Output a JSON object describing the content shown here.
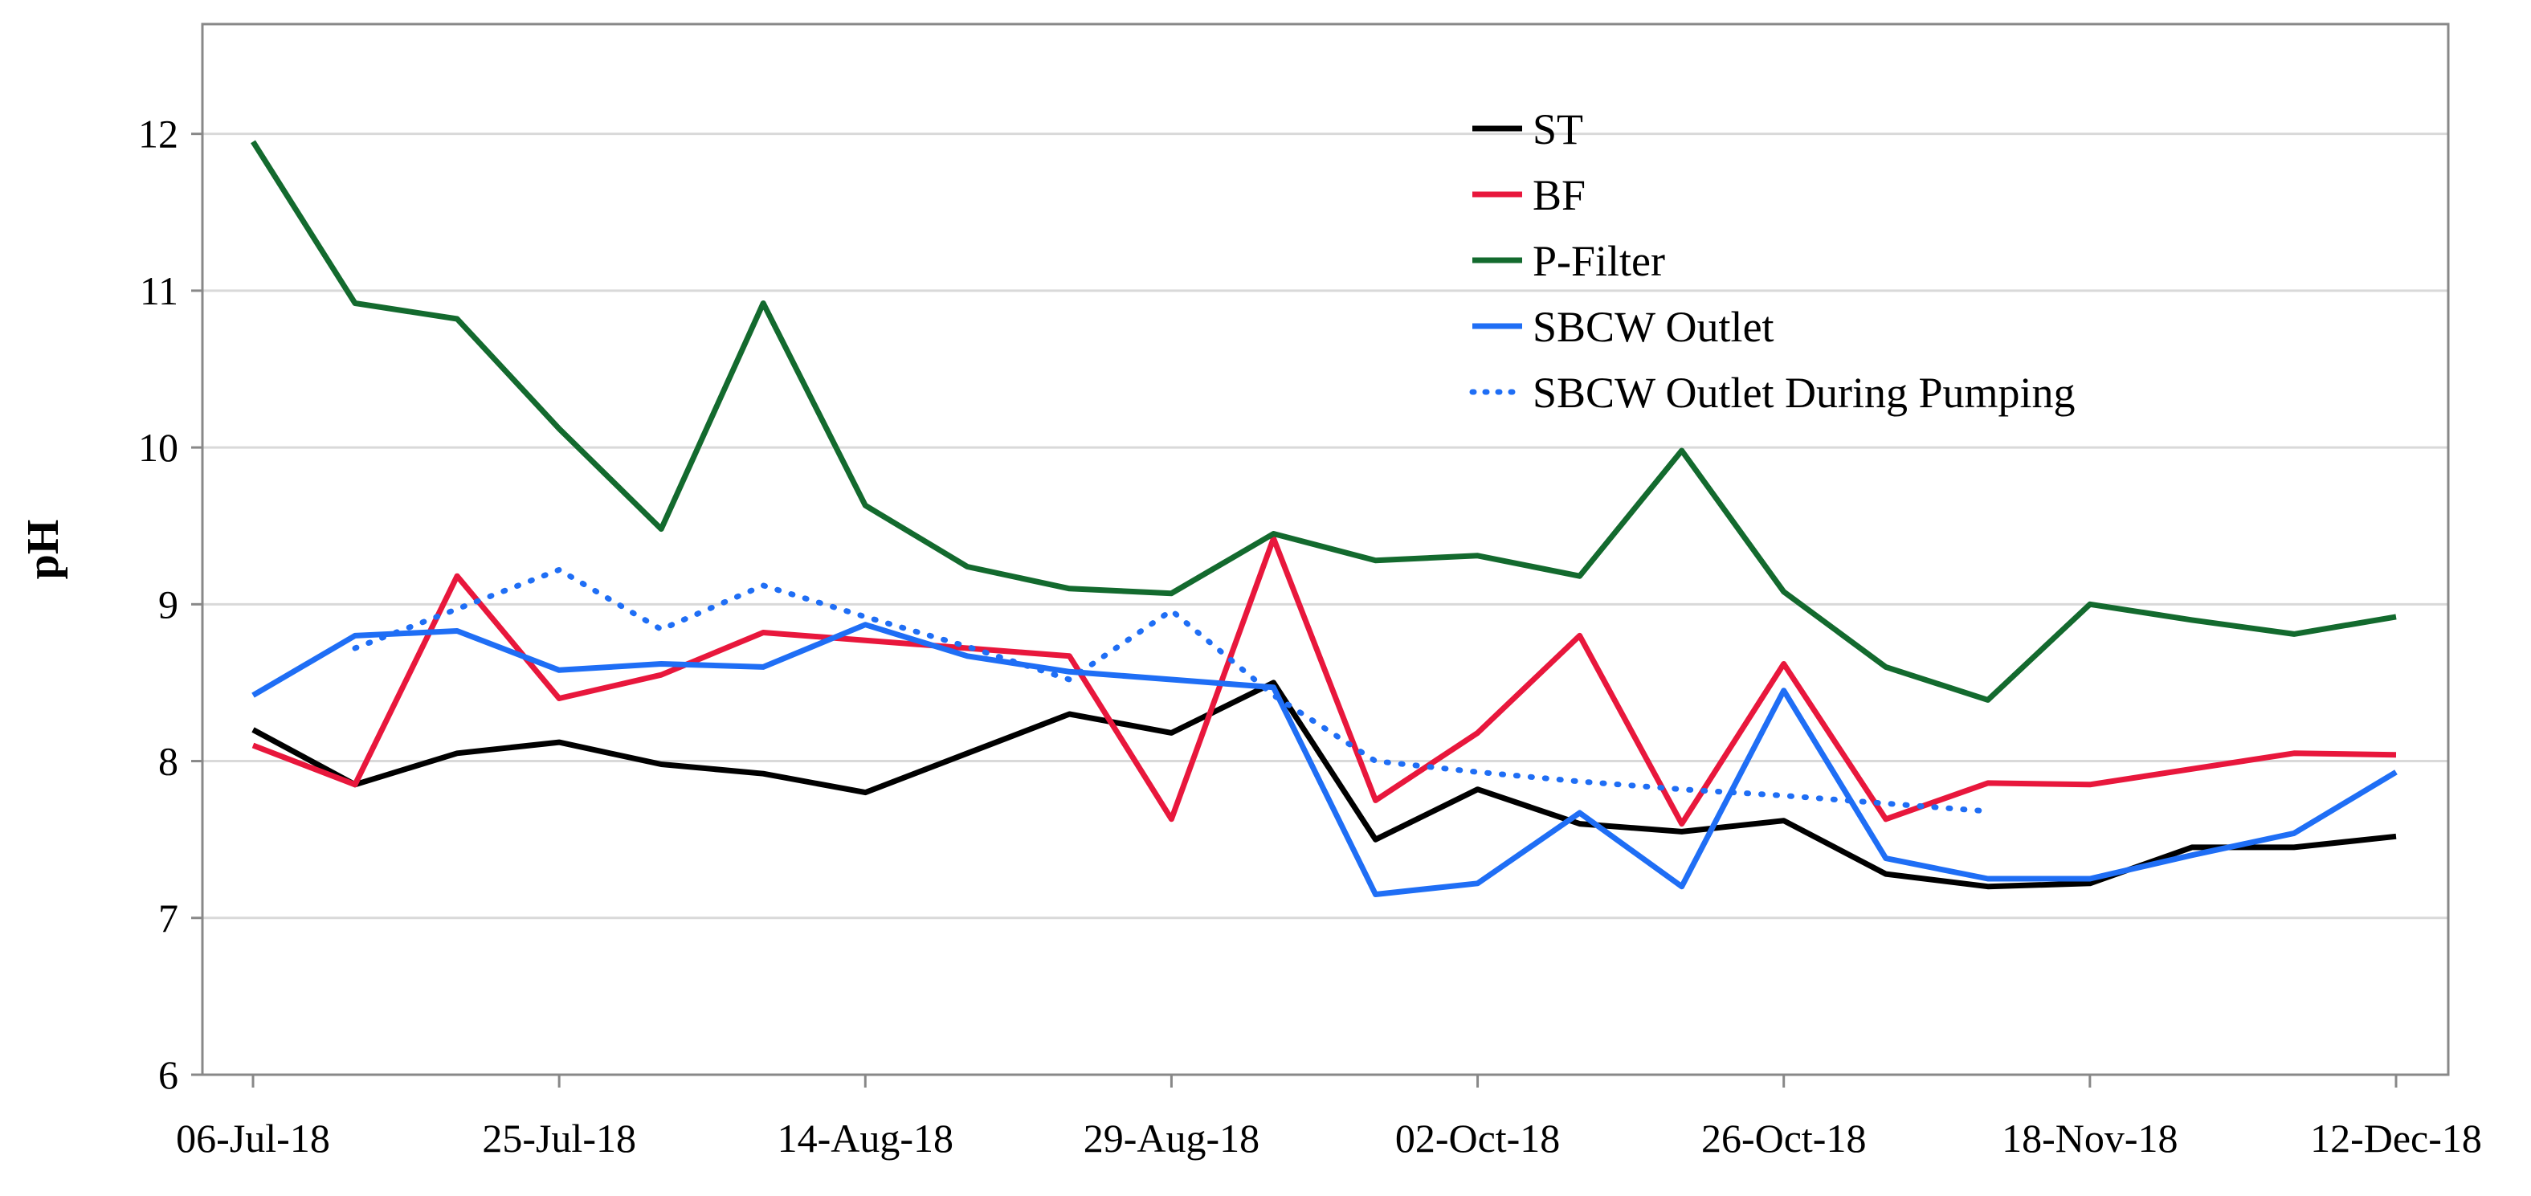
{
  "chart_data": {
    "type": "line",
    "title": "",
    "xlabel": "",
    "ylabel": "pH",
    "ylim": [
      6,
      12.7
    ],
    "yticks": [
      6,
      7,
      8,
      9,
      10,
      11,
      12
    ],
    "ytick_labels": [
      "6",
      "7",
      "8",
      "9",
      "10",
      "11",
      "12"
    ],
    "grid": "horizontal",
    "legend_position": "top-center",
    "x_index_range": [
      0,
      21
    ],
    "x_tick_indices": [
      0,
      3,
      6,
      9,
      12,
      15,
      18,
      21
    ],
    "x_tick_labels": [
      "06-Jul-18",
      "25-Jul-18",
      "14-Aug-18",
      "29-Aug-18",
      "02-Oct-18",
      "26-Oct-18",
      "18-Nov-18",
      "12-Dec-18"
    ],
    "series": [
      {
        "name": "ST",
        "color": "#000000",
        "style": "solid",
        "x": [
          0,
          1,
          2,
          3,
          4,
          5,
          6,
          7,
          8,
          9,
          10,
          11,
          12,
          13,
          14,
          15,
          16,
          17,
          18,
          19,
          20,
          21
        ],
        "values": [
          8.2,
          7.85,
          8.05,
          8.12,
          7.98,
          7.92,
          7.8,
          8.05,
          8.3,
          8.18,
          8.5,
          7.5,
          7.82,
          7.6,
          7.55,
          7.62,
          7.28,
          7.2,
          7.22,
          7.45,
          7.45,
          7.52
        ]
      },
      {
        "name": "BF",
        "color": "#e8173c",
        "style": "solid",
        "x": [
          0,
          1,
          2,
          3,
          4,
          5,
          6,
          7,
          8,
          9,
          10,
          11,
          12,
          13,
          14,
          15,
          16,
          17,
          18,
          19,
          20,
          21
        ],
        "values": [
          8.1,
          7.85,
          9.18,
          8.4,
          8.55,
          8.82,
          8.77,
          8.72,
          8.67,
          7.63,
          9.42,
          7.75,
          8.18,
          8.8,
          7.6,
          8.62,
          7.63,
          7.86,
          7.85,
          7.95,
          8.05,
          8.04
        ]
      },
      {
        "name": "P-Filter",
        "color": "#136a2e",
        "style": "solid",
        "x": [
          0,
          1,
          2,
          3,
          4,
          5,
          6,
          7,
          8,
          9,
          10,
          11,
          12,
          13,
          14,
          15,
          16,
          17,
          18,
          19,
          20,
          21
        ],
        "values": [
          11.95,
          10.92,
          10.82,
          10.12,
          9.48,
          10.92,
          9.63,
          9.24,
          9.1,
          9.07,
          9.45,
          9.28,
          9.31,
          9.18,
          9.98,
          9.08,
          8.6,
          8.39,
          9.0,
          8.9,
          8.81,
          8.92
        ]
      },
      {
        "name": "SBCW Outlet",
        "color": "#1f6ef5",
        "style": "solid",
        "x": [
          0,
          1,
          2,
          3,
          4,
          5,
          6,
          7,
          8,
          9,
          10,
          11,
          12,
          13,
          14,
          15,
          16,
          17,
          18,
          19,
          20,
          21
        ],
        "values": [
          8.42,
          8.8,
          8.83,
          8.58,
          8.62,
          8.6,
          8.87,
          8.67,
          8.57,
          8.52,
          8.47,
          7.15,
          7.22,
          7.67,
          7.2,
          8.45,
          7.38,
          7.25,
          7.25,
          7.4,
          7.54,
          7.93
        ]
      },
      {
        "name": "SBCW Outlet During Pumping",
        "color": "#1f6ef5",
        "style": "dotted",
        "x": [
          1,
          2,
          3,
          4,
          5,
          6,
          7,
          8,
          9,
          10,
          11,
          12,
          13,
          14,
          15,
          16,
          17
        ],
        "values": [
          8.72,
          8.97,
          9.22,
          8.84,
          9.12,
          8.92,
          8.73,
          8.52,
          8.96,
          8.42,
          8.0,
          7.93,
          7.87,
          7.82,
          7.78,
          7.73,
          7.68
        ]
      }
    ]
  }
}
